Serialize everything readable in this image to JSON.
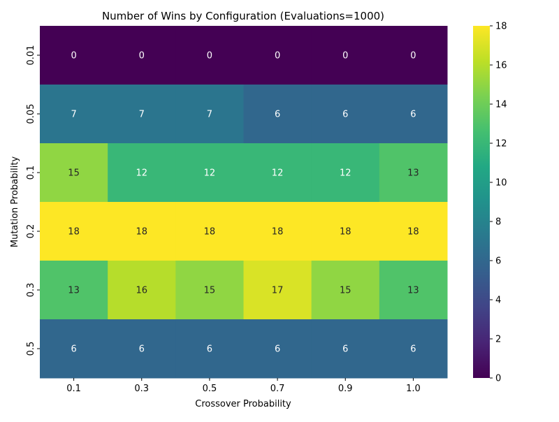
{
  "chart_data": {
    "type": "heatmap",
    "title": "Number of Wins by Configuration (Evaluations=1000)",
    "xlabel": "Crossover Probability",
    "ylabel": "Mutation Probability",
    "x_categories": [
      "0.1",
      "0.3",
      "0.5",
      "0.7",
      "0.9",
      "1.0"
    ],
    "y_categories": [
      "0.01",
      "0.05",
      "0.1",
      "0.2",
      "0.3",
      "0.5"
    ],
    "values": [
      [
        0,
        0,
        0,
        0,
        0,
        0
      ],
      [
        7,
        7,
        7,
        6,
        6,
        6
      ],
      [
        15,
        12,
        12,
        12,
        12,
        13
      ],
      [
        18,
        18,
        18,
        18,
        18,
        18
      ],
      [
        13,
        16,
        15,
        17,
        15,
        13
      ],
      [
        6,
        6,
        6,
        6,
        6,
        6
      ]
    ],
    "colorbar": {
      "colormap": "viridis",
      "range": [
        0,
        18
      ],
      "ticks": [
        0,
        2,
        4,
        6,
        8,
        10,
        12,
        14,
        16,
        18
      ]
    },
    "annotations": true,
    "grid": false
  }
}
